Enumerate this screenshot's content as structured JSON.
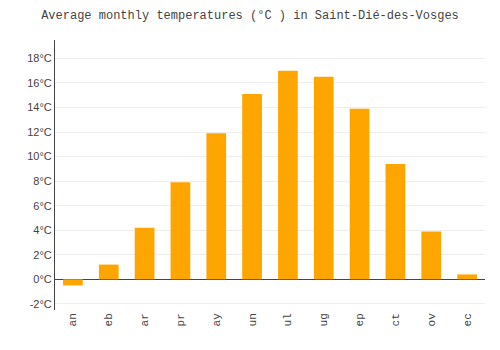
{
  "chart_data": {
    "type": "bar",
    "title": "Average monthly temperatures (°C ) in Saint-Dié-des-Vosges",
    "categories": [
      "an",
      "eb",
      "ar",
      "pr",
      "ay",
      "un",
      "ul",
      "ug",
      "ep",
      "ct",
      "ov",
      "ec"
    ],
    "values": [
      -0.5,
      1.2,
      4.2,
      7.9,
      11.9,
      15.1,
      17.0,
      16.5,
      13.9,
      9.4,
      3.9,
      0.4
    ],
    "color": "#FFA500",
    "ylim": [
      -2.5,
      19.5
    ],
    "yticks": [
      {
        "value": -2,
        "label": "-2°C"
      },
      {
        "value": 0,
        "label": "0°C"
      },
      {
        "value": 2,
        "label": "2°C"
      },
      {
        "value": 4,
        "label": "4°C"
      },
      {
        "value": 6,
        "label": "6°C"
      },
      {
        "value": 8,
        "label": "8°C"
      },
      {
        "value": 10,
        "label": "10°C"
      },
      {
        "value": 12,
        "label": "12°C"
      },
      {
        "value": 14,
        "label": "14°C"
      },
      {
        "value": 16,
        "label": "16°C"
      },
      {
        "value": 18,
        "label": "18°C"
      }
    ],
    "grid": true
  }
}
